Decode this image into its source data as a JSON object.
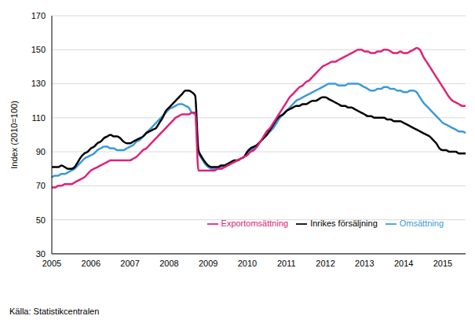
{
  "chart_data": {
    "type": "line",
    "y_label": "Index (2010=100)",
    "source": "Källa: Statistikcentralen",
    "categories": [
      "2005",
      null,
      null,
      null,
      null,
      null,
      null,
      null,
      null,
      null,
      null,
      null,
      "2006",
      null,
      null,
      null,
      null,
      null,
      null,
      null,
      null,
      null,
      null,
      null,
      "2007",
      null,
      null,
      null,
      null,
      null,
      null,
      null,
      null,
      null,
      null,
      null,
      "2008",
      null,
      null,
      null,
      null,
      null,
      null,
      null,
      null,
      null,
      null,
      null,
      "2009",
      null,
      null,
      null,
      null,
      null,
      null,
      null,
      null,
      null,
      null,
      null,
      "2010",
      null,
      null,
      null,
      null,
      null,
      null,
      null,
      null,
      null,
      null,
      null,
      "2011",
      null,
      null,
      null,
      null,
      null,
      null,
      null,
      null,
      null,
      null,
      null,
      "2012",
      null,
      null,
      null,
      null,
      null,
      null,
      null,
      null,
      null,
      null,
      null,
      "2013",
      null,
      null,
      null,
      null,
      null,
      null,
      null,
      null,
      null,
      null,
      null,
      "2014",
      null,
      null,
      null,
      null,
      null,
      null,
      null,
      null,
      null,
      null,
      null,
      "2015",
      null,
      null,
      null,
      null,
      null,
      null,
      null
    ],
    "series": [
      {
        "name": "Omsättning",
        "color": "#3a9ad9",
        "values": [
          75,
          76,
          76,
          77,
          77,
          78,
          79,
          80,
          82,
          84,
          86,
          87,
          88,
          89,
          91,
          92,
          93,
          93,
          92,
          92,
          91,
          91,
          91,
          92,
          93,
          94,
          96,
          97,
          99,
          101,
          103,
          105,
          107,
          109,
          111,
          113,
          115,
          116,
          117,
          118,
          118,
          117,
          116,
          113,
          112,
          90,
          86,
          83,
          81,
          80,
          80,
          80,
          81,
          81,
          82,
          83,
          84,
          85,
          86,
          87,
          89,
          91,
          92,
          94,
          96,
          98,
          100,
          102,
          104,
          107,
          110,
          112,
          114,
          116,
          118,
          120,
          121,
          122,
          123,
          124,
          125,
          126,
          127,
          128,
          129,
          130,
          130,
          130,
          129,
          129,
          129,
          130,
          130,
          130,
          130,
          129,
          128,
          127,
          126,
          126,
          127,
          127,
          128,
          128,
          127,
          127,
          126,
          126,
          125,
          125,
          126,
          126,
          125,
          122,
          119,
          117,
          115,
          113,
          111,
          109,
          107,
          106,
          105,
          104,
          103,
          102,
          102,
          101
        ]
      },
      {
        "name": "Inrikes försäljning",
        "color": "#000000",
        "values": [
          81,
          81,
          81,
          82,
          81,
          80,
          80,
          81,
          84,
          87,
          89,
          90,
          92,
          93,
          95,
          96,
          98,
          99,
          100,
          99,
          99,
          98,
          96,
          95,
          95,
          96,
          97,
          98,
          99,
          101,
          102,
          103,
          104,
          107,
          110,
          114,
          116,
          118,
          120,
          122,
          124,
          126,
          126,
          125,
          123,
          91,
          87,
          84,
          82,
          81,
          81,
          81,
          82,
          82,
          83,
          84,
          85,
          85,
          86,
          87,
          90,
          92,
          93,
          94,
          96,
          98,
          100,
          103,
          106,
          109,
          111,
          112,
          114,
          115,
          116,
          117,
          117,
          118,
          118,
          119,
          120,
          120,
          121,
          122,
          122,
          121,
          120,
          119,
          118,
          117,
          117,
          116,
          116,
          115,
          114,
          113,
          112,
          111,
          111,
          110,
          110,
          110,
          110,
          109,
          109,
          108,
          108,
          108,
          107,
          106,
          105,
          104,
          103,
          102,
          101,
          100,
          99,
          97,
          95,
          92,
          91,
          91,
          90,
          90,
          90,
          89,
          89,
          89
        ]
      },
      {
        "name": "Exportomsättning",
        "color": "#e0207a",
        "values": [
          69,
          69,
          70,
          70,
          71,
          71,
          71,
          72,
          73,
          74,
          75,
          77,
          79,
          80,
          81,
          82,
          83,
          84,
          85,
          85,
          85,
          85,
          85,
          85,
          85,
          86,
          87,
          89,
          91,
          92,
          94,
          96,
          98,
          100,
          102,
          104,
          106,
          108,
          110,
          111,
          112,
          112,
          112,
          113,
          113,
          79,
          79,
          79,
          79,
          79,
          79,
          80,
          80,
          81,
          82,
          83,
          84,
          85,
          86,
          87,
          88,
          90,
          91,
          93,
          96,
          99,
          102,
          104,
          107,
          110,
          113,
          116,
          119,
          122,
          124,
          126,
          128,
          129,
          131,
          132,
          134,
          136,
          138,
          140,
          141,
          142,
          143,
          143,
          144,
          145,
          146,
          147,
          148,
          149,
          150,
          150,
          149,
          149,
          148,
          148,
          149,
          149,
          150,
          150,
          149,
          148,
          148,
          149,
          148,
          148,
          149,
          150,
          151,
          150,
          146,
          143,
          140,
          137,
          134,
          131,
          128,
          125,
          122,
          120,
          119,
          118,
          117,
          117
        ]
      }
    ],
    "ylim": [
      30,
      170
    ],
    "yticks": [
      30,
      50,
      70,
      90,
      110,
      130,
      150,
      170
    ],
    "grid": true,
    "legend": "lower right"
  }
}
